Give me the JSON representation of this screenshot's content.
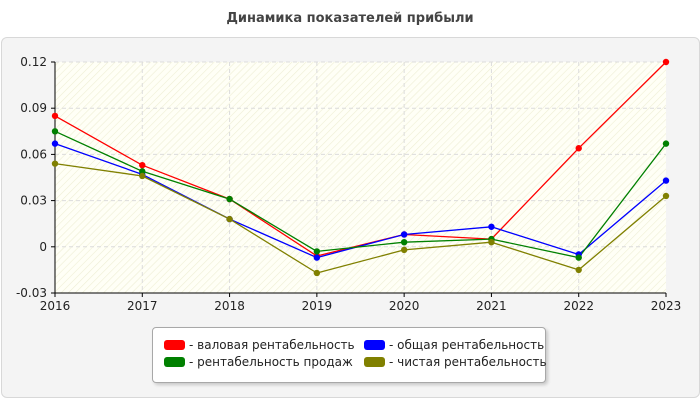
{
  "chart_data": {
    "type": "line",
    "title": "Динамика показателей прибыли",
    "x": [
      "2016",
      "2017",
      "2018",
      "2019",
      "2020",
      "2021",
      "2022",
      "2023"
    ],
    "ylim": [
      -0.03,
      0.12
    ],
    "yticks": [
      -0.03,
      0,
      0.03,
      0.06,
      0.09,
      0.12
    ],
    "ytick_labels": [
      "-0.03",
      "0",
      "0.03",
      "0.06",
      "0.09",
      "0.12"
    ],
    "grid": true,
    "legend_position": "bottom-center",
    "series": [
      {
        "name": "- валовая рентабельность",
        "color": "#ff0000",
        "values": [
          0.085,
          0.053,
          0.031,
          -0.006,
          0.008,
          0.005,
          0.064,
          0.12
        ]
      },
      {
        "name": "- общая рентабельность",
        "color": "#0000ff",
        "values": [
          0.067,
          0.047,
          0.018,
          -0.007,
          0.008,
          0.013,
          -0.005,
          0.043
        ]
      },
      {
        "name": "- рентабельность продаж",
        "color": "#008000",
        "values": [
          0.075,
          0.049,
          0.031,
          -0.003,
          0.003,
          0.005,
          -0.007,
          0.067
        ]
      },
      {
        "name": "- чистая рентабельность",
        "color": "#808000",
        "values": [
          0.054,
          0.046,
          0.018,
          -0.017,
          -0.002,
          0.003,
          -0.015,
          0.033
        ]
      }
    ]
  }
}
